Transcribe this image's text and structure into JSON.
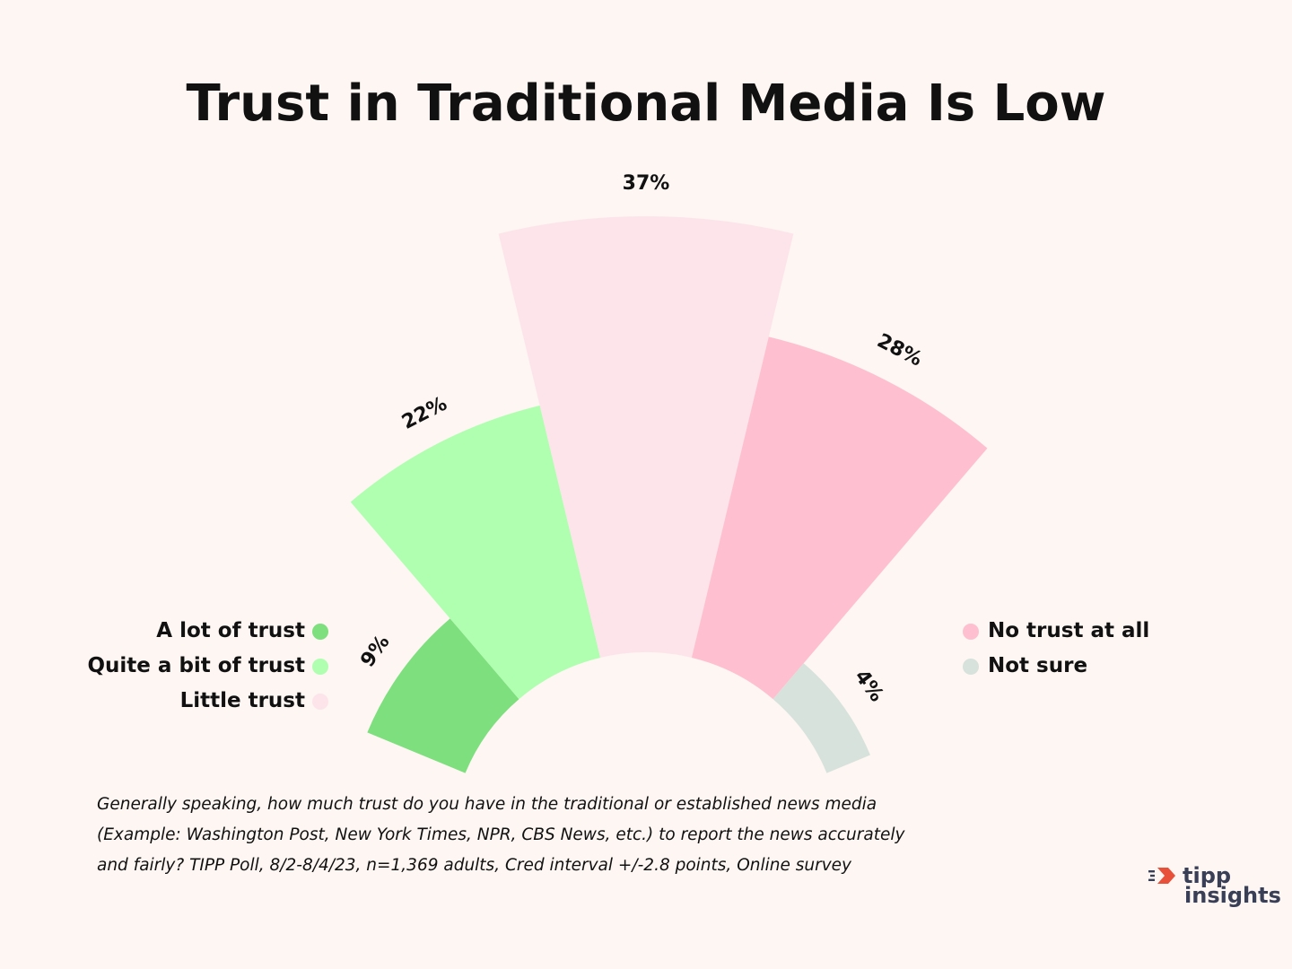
{
  "title": "Trust in Traditional Media Is Low",
  "chart_data": {
    "type": "polar-bar",
    "categories": [
      "A lot of trust",
      "Quite a bit of trust",
      "Little trust",
      "No trust at all",
      "Not sure"
    ],
    "values": [
      9,
      22,
      37,
      28,
      4
    ],
    "value_labels": [
      "9%",
      "22%",
      "37%",
      "28%",
      "4%"
    ],
    "colors": [
      "#7ddf7d",
      "#b0ffb0",
      "#fde4ea",
      "#fec0d0",
      "#d7e2dc"
    ],
    "unit": "%"
  },
  "legend": {
    "left": [
      {
        "label": "A lot of trust",
        "color": "#7ddf7d"
      },
      {
        "label": "Quite a bit of trust",
        "color": "#b0ffb0"
      },
      {
        "label": "Little trust",
        "color": "#fde4ea"
      }
    ],
    "right": [
      {
        "label": "No trust at all",
        "color": "#fec0d0"
      },
      {
        "label": "Not sure",
        "color": "#d7e2dc"
      }
    ]
  },
  "footnote": {
    "line1": "Generally speaking, how much trust do you have in the traditional or  established news media",
    "line2": " (Example: Washington Post, New York Times, NPR,  CBS News, etc.) to report the news accurately",
    "line3": "and fairly? TIPP Poll, 8/2-8/4/23, n=1,369 adults, Cred interval +/-2.8 points, Online survey"
  },
  "logo": {
    "word1": "tipp",
    "word2": "insights",
    "accent_color": "#e8503a",
    "text_color": "#3a3f58"
  }
}
